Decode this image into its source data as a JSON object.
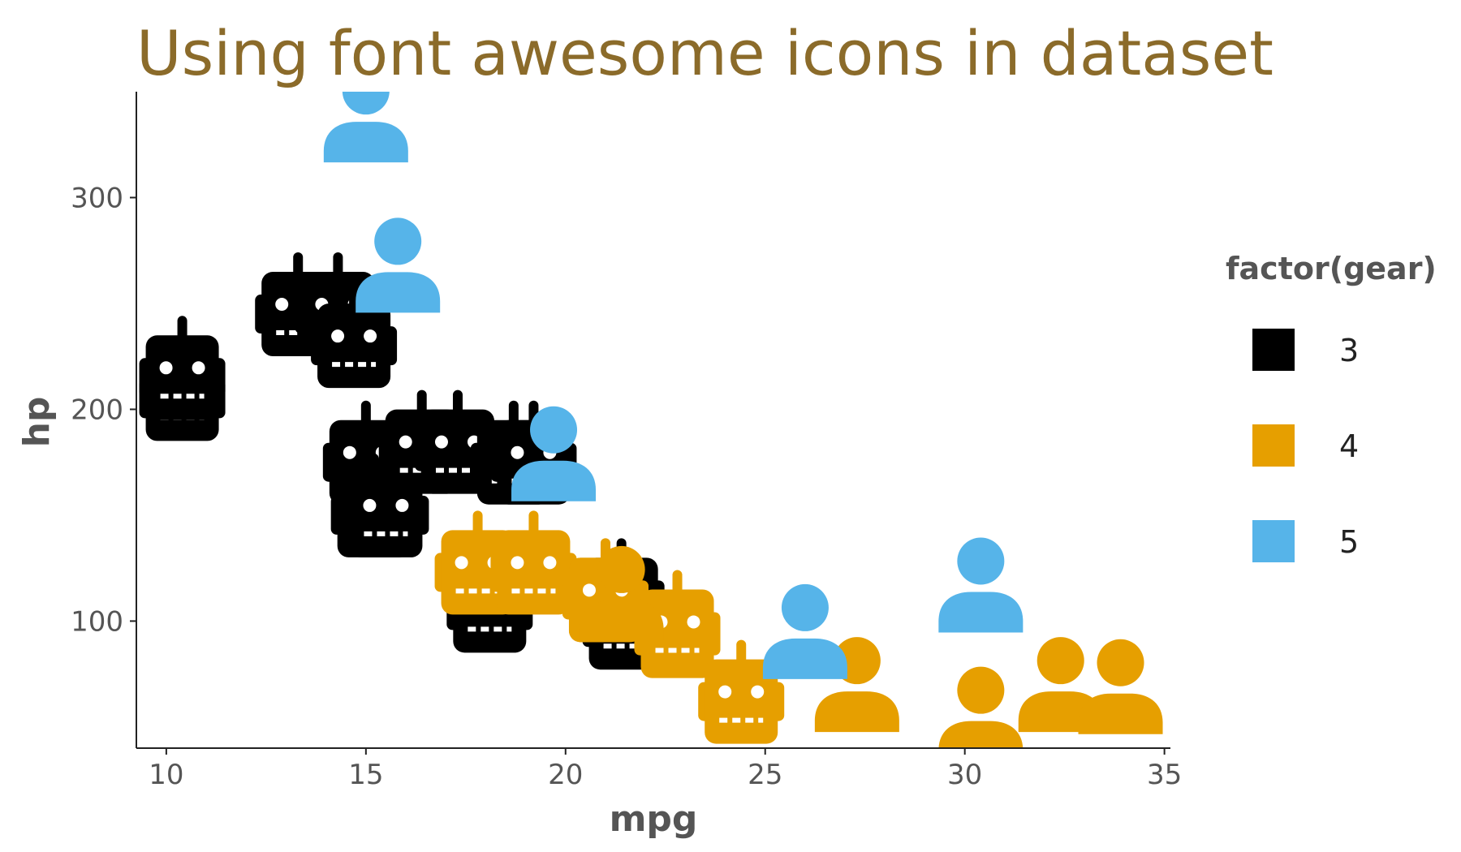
{
  "chart_data": {
    "type": "scatter",
    "title": "Using font awesome icons in dataset",
    "xlabel": "mpg",
    "ylabel": "hp",
    "xlim": [
      9.25,
      35.15
    ],
    "ylim": [
      40,
      350
    ],
    "x_ticks": [
      10,
      15,
      20,
      25,
      30,
      35
    ],
    "y_ticks": [
      100,
      200,
      300
    ],
    "grid": false,
    "legend": {
      "title": "factor(gear)",
      "position": "right",
      "entries": [
        {
          "label": "3",
          "color": "#000000"
        },
        {
          "label": "4",
          "color": "#E69F00"
        },
        {
          "label": "5",
          "color": "#56B4E9"
        }
      ]
    },
    "icons": {
      "3": "robot-icon",
      "4": "robot-icon-and-user-icon",
      "5": "user-icon"
    },
    "series": [
      {
        "name": "3",
        "color": "#000000",
        "points": [
          {
            "x": 10.4,
            "y": 205,
            "icon": "robot-icon"
          },
          {
            "x": 10.4,
            "y": 215,
            "icon": "robot-icon"
          },
          {
            "x": 13.3,
            "y": 245,
            "icon": "robot-icon"
          },
          {
            "x": 14.3,
            "y": 245,
            "icon": "robot-icon"
          },
          {
            "x": 14.7,
            "y": 230,
            "icon": "robot-icon"
          },
          {
            "x": 15.0,
            "y": 175,
            "icon": "robot-icon"
          },
          {
            "x": 15.2,
            "y": 150,
            "icon": "robot-icon"
          },
          {
            "x": 15.5,
            "y": 150,
            "icon": "robot-icon"
          },
          {
            "x": 16.4,
            "y": 180,
            "icon": "robot-icon"
          },
          {
            "x": 17.3,
            "y": 180,
            "icon": "robot-icon"
          },
          {
            "x": 18.7,
            "y": 175,
            "icon": "robot-icon"
          },
          {
            "x": 19.2,
            "y": 175,
            "icon": "robot-icon"
          },
          {
            "x": 18.1,
            "y": 105,
            "icon": "robot-icon"
          },
          {
            "x": 21.4,
            "y": 110,
            "icon": "robot-icon"
          },
          {
            "x": 21.5,
            "y": 97,
            "icon": "robot-icon"
          }
        ]
      },
      {
        "name": "4",
        "color": "#E69F00",
        "points": [
          {
            "x": 17.8,
            "y": 123,
            "icon": "robot-icon"
          },
          {
            "x": 19.2,
            "y": 123,
            "icon": "robot-icon"
          },
          {
            "x": 21.0,
            "y": 110,
            "icon": "robot-icon"
          },
          {
            "x": 21.0,
            "y": 110,
            "icon": "robot-icon"
          },
          {
            "x": 22.8,
            "y": 93,
            "icon": "robot-icon"
          },
          {
            "x": 22.8,
            "y": 95,
            "icon": "robot-icon"
          },
          {
            "x": 24.4,
            "y": 62,
            "icon": "robot-icon"
          },
          {
            "x": 21.4,
            "y": 109,
            "icon": "user-icon"
          },
          {
            "x": 27.3,
            "y": 66,
            "icon": "user-icon"
          },
          {
            "x": 30.4,
            "y": 52,
            "icon": "user-icon"
          },
          {
            "x": 32.4,
            "y": 66,
            "icon": "user-icon"
          },
          {
            "x": 33.9,
            "y": 65,
            "icon": "user-icon"
          }
        ]
      },
      {
        "name": "5",
        "color": "#56B4E9",
        "points": [
          {
            "x": 15.0,
            "y": 335,
            "icon": "user-icon"
          },
          {
            "x": 15.8,
            "y": 264,
            "icon": "user-icon"
          },
          {
            "x": 19.7,
            "y": 175,
            "icon": "user-icon"
          },
          {
            "x": 26.0,
            "y": 91,
            "icon": "user-icon"
          },
          {
            "x": 30.4,
            "y": 113,
            "icon": "user-icon"
          }
        ]
      }
    ]
  }
}
